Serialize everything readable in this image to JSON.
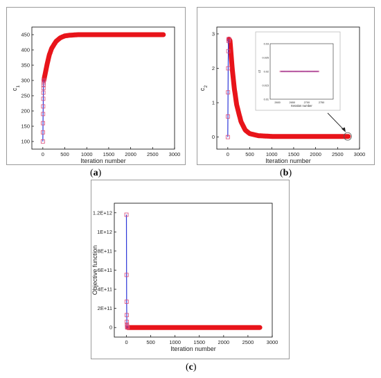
{
  "chart_data": [
    {
      "type": "line",
      "panel_label": "a",
      "xlabel": "Iteration number",
      "ylabel": "c1",
      "xlim": [
        -250,
        3000
      ],
      "ylim": [
        75,
        475
      ],
      "xticks": [
        0,
        500,
        1000,
        1500,
        2000,
        2500,
        3000
      ],
      "yticks": [
        100,
        150,
        200,
        250,
        300,
        350,
        400,
        450
      ],
      "ytick_labels": [
        "100",
        "150",
        "200",
        "250",
        "300",
        "350",
        "400",
        "450"
      ],
      "grid": false,
      "colors": {
        "converged": "#e8141a",
        "early": "#2b36d8",
        "markers": "#d94a7a"
      },
      "series": [
        {
          "x": [
            0,
            2,
            4,
            6,
            8,
            10,
            12,
            14,
            16,
            18,
            20,
            50,
            100,
            150,
            200,
            300,
            400,
            500,
            600,
            800,
            1000,
            1500,
            2000,
            2500,
            2750
          ],
          "y": [
            100,
            130,
            160,
            190,
            215,
            240,
            260,
            275,
            285,
            292,
            297,
            320,
            355,
            385,
            405,
            428,
            440,
            446,
            448,
            450,
            450,
            450,
            450,
            450,
            450
          ]
        }
      ]
    },
    {
      "type": "line",
      "panel_label": "b",
      "xlabel": "Iteration number",
      "ylabel": "c2",
      "xlim": [
        -250,
        3000
      ],
      "ylim": [
        -0.35,
        3.2
      ],
      "xticks": [
        0,
        500,
        1000,
        1500,
        2000,
        2500,
        3000
      ],
      "yticks": [
        0,
        1,
        2,
        3
      ],
      "ytick_labels": [
        "0",
        "1",
        "2",
        "3"
      ],
      "grid": false,
      "colors": {
        "converged": "#e8141a",
        "early": "#2b36d8",
        "markers": "#d94a7a"
      },
      "series": [
        {
          "x": [
            0,
            3,
            6,
            9,
            12,
            15,
            20,
            30,
            50,
            100,
            150,
            200,
            300,
            400,
            500,
            700,
            1000,
            1500,
            2000,
            2500,
            2750
          ],
          "y": [
            0.0,
            0.6,
            1.3,
            2.0,
            2.5,
            2.8,
            2.85,
            2.85,
            2.8,
            2.0,
            1.4,
            0.95,
            0.45,
            0.2,
            0.1,
            0.04,
            0.02,
            0.02,
            0.02,
            0.02,
            0.02
          ]
        }
      ],
      "inset": {
        "xticks": [
          2600,
          2650,
          2700,
          2750
        ],
        "ylabel": "c2",
        "xlabel": "Iteration number",
        "xlim": [
          2575,
          2790
        ],
        "ylim": [
          0.01,
          0.03
        ],
        "yticks": [
          0.01,
          0.015,
          0.02,
          0.025,
          0.03
        ],
        "ytick_labels": [
          "0.01",
          "0.015",
          "0.02",
          "0.025",
          "0.03"
        ],
        "series": [
          {
            "x": [
              2610,
              2740
            ],
            "y": [
              0.02,
              0.02
            ]
          }
        ]
      }
    },
    {
      "type": "line",
      "panel_label": "c",
      "xlabel": "Iteration number",
      "ylabel": "Objective function",
      "xlim": [
        -250,
        3000
      ],
      "ylim": [
        -100000000000.0,
        1300000000000.0
      ],
      "xticks": [
        0,
        500,
        1000,
        1500,
        2000,
        2500,
        3000
      ],
      "yticks": [
        0,
        200000000000,
        400000000000,
        600000000000,
        800000000000,
        1000000000000,
        1200000000000
      ],
      "ytick_labels": [
        "0",
        "2E+11",
        "4E+11",
        "6E+11",
        "8E+11",
        "1E+12",
        "1.2E+12"
      ],
      "grid": false,
      "colors": {
        "converged": "#e8141a",
        "early": "#2b36d8",
        "markers": "#d94a7a"
      },
      "series": [
        {
          "x": [
            0,
            2,
            4,
            6,
            8,
            10,
            12,
            14,
            16,
            20,
            30,
            50,
            100,
            500,
            1000,
            1500,
            2000,
            2500,
            2750
          ],
          "y": [
            1180000000000,
            550000000000,
            270000000000,
            130000000000,
            60000000000,
            30000000000,
            15000000000,
            6000000000,
            2000000000,
            500000000,
            0,
            0,
            0,
            0,
            0,
            0,
            0,
            0,
            0
          ]
        }
      ]
    }
  ]
}
